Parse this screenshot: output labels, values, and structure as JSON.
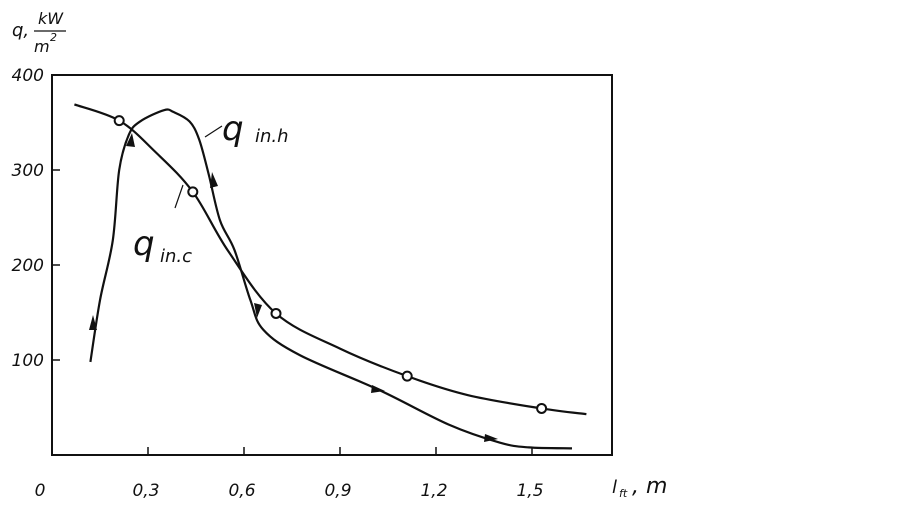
{
  "chart_data": {
    "type": "line",
    "y_label": {
      "symbol": "q,",
      "numerator": "kW",
      "denominator": "m",
      "exponent": "2"
    },
    "x_label": {
      "symbol": "l",
      "subscript": "ft",
      "unit": ", m"
    },
    "xlim": [
      0,
      1.75
    ],
    "ylim": [
      0,
      400
    ],
    "xticks": [
      0,
      {
        "value": 0.3,
        "label": "0,3"
      },
      {
        "value": 0.6,
        "label": "0,6"
      },
      {
        "value": 0.9,
        "label": "0,9"
      },
      {
        "value": 1.2,
        "label": "1,2"
      },
      {
        "value": 1.5,
        "label": "1,5"
      }
    ],
    "yticks": [
      100,
      200,
      300,
      400
    ],
    "series": [
      {
        "name": "q",
        "subscript": "in.h",
        "color": "#111111",
        "x": [
          0.12,
          0.15,
          0.19,
          0.21,
          0.24,
          0.275,
          0.35,
          0.38,
          0.43,
          0.46,
          0.49,
          0.525,
          0.57,
          0.62,
          0.66,
          0.775,
          1.025,
          1.24,
          1.4,
          1.49,
          1.625
        ],
        "values": [
          98,
          163,
          226,
          300,
          337,
          351,
          363,
          361,
          351,
          332,
          295,
          247,
          216,
          163,
          132,
          105,
          68,
          32,
          13,
          8,
          7
        ]
      },
      {
        "name": "q",
        "subscript": "in.c",
        "color": "#111111",
        "x": [
          0.07,
          0.21,
          0.32,
          0.44,
          0.55,
          0.7,
          0.9,
          1.11,
          1.3,
          1.53,
          1.67
        ],
        "values": [
          369,
          352,
          320,
          277,
          215,
          149,
          112,
          83,
          63,
          49,
          43
        ],
        "markers": [
          false,
          true,
          false,
          true,
          false,
          true,
          false,
          true,
          false,
          true,
          false
        ]
      }
    ]
  }
}
